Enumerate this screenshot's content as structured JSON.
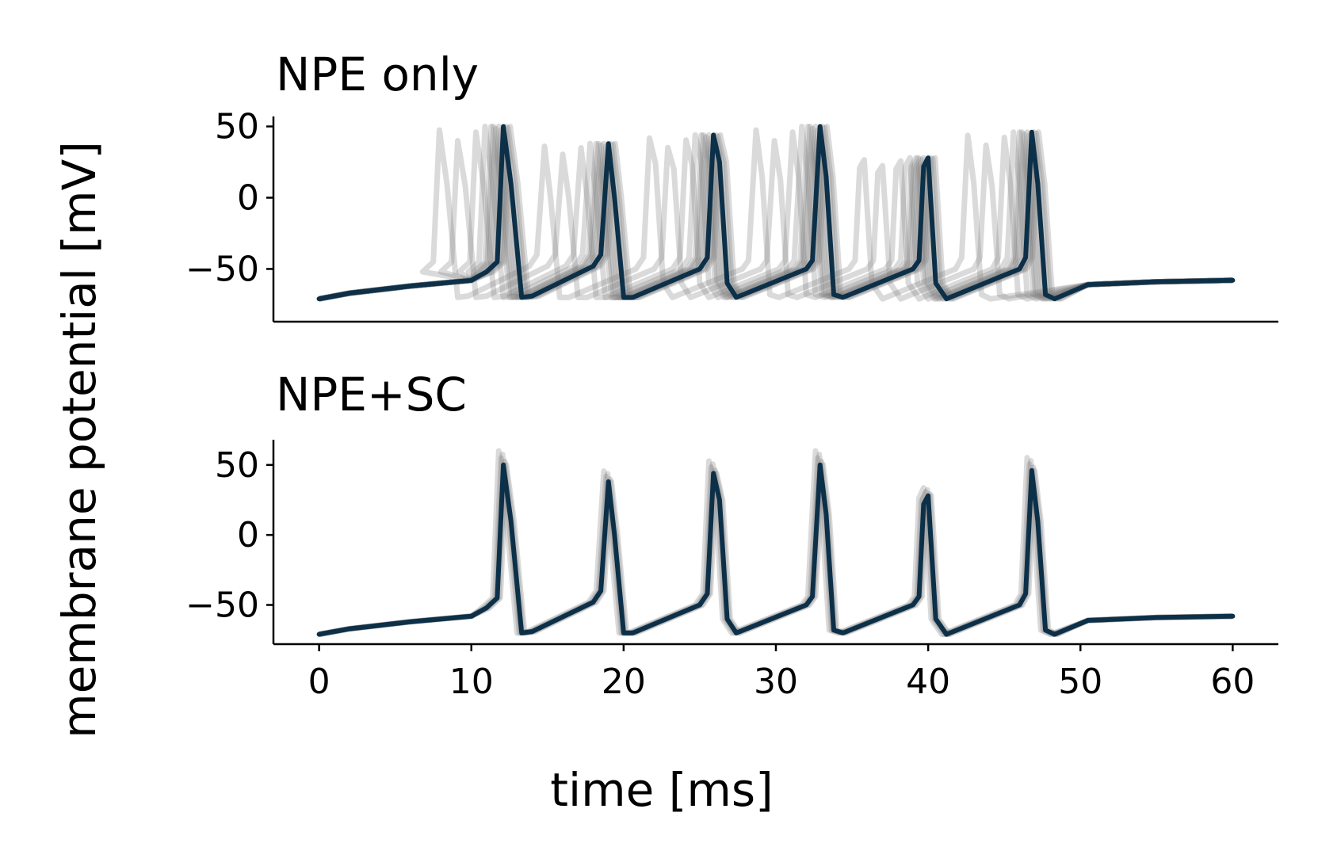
{
  "chart_data": [
    {
      "type": "line",
      "title": "NPE only",
      "xlabel": "time [ms]",
      "ylabel": "membrane potential [mV]",
      "xlim": [
        -3,
        63
      ],
      "ylim": [
        -87,
        57
      ],
      "yticks": [
        50,
        0,
        -50
      ],
      "ytick_labels": [
        "50",
        "0",
        "−50"
      ],
      "show_xticks": false,
      "grid": false,
      "series": [
        {
          "role": "mean",
          "color": "#0d3049",
          "x": [
            0,
            2,
            6,
            10,
            11,
            11.7,
            12.1,
            12.6,
            13.3,
            14,
            18,
            18.5,
            19,
            19.4,
            20,
            20.6,
            25,
            25.5,
            25.9,
            26.3,
            26.8,
            27.4,
            32,
            32.4,
            32.9,
            33.3,
            33.8,
            34.4,
            39,
            39.4,
            39.7,
            40,
            40.5,
            41.2,
            46,
            46.4,
            46.8,
            47.2,
            47.7,
            48.3,
            50.5,
            55,
            60
          ],
          "y": [
            -71,
            -67,
            -62,
            -58,
            -52,
            -45,
            50,
            10,
            -70,
            -69,
            -48,
            -40,
            38,
            0,
            -70,
            -70,
            -50,
            -42,
            44,
            25,
            -60,
            -70,
            -50,
            -44,
            50,
            15,
            -68,
            -70,
            -50,
            -44,
            22,
            28,
            -60,
            -71,
            -50,
            -42,
            46,
            10,
            -68,
            -71,
            -61,
            -59,
            -58
          ]
        }
      ],
      "sample_traces": [
        {
          "shift": -4.2,
          "peak_scale": 0.95
        },
        {
          "shift": -3.0,
          "peak_scale": 0.8
        },
        {
          "shift": -1.8,
          "peak_scale": 0.92
        },
        {
          "shift": -1.2,
          "peak_scale": 1.0
        },
        {
          "shift": -0.8,
          "peak_scale": 1.0
        },
        {
          "shift": -0.5,
          "peak_scale": 0.97
        },
        {
          "shift": -0.3,
          "peak_scale": 1.0
        },
        {
          "shift": -0.15,
          "peak_scale": 0.95
        },
        {
          "shift": 0.15,
          "peak_scale": 1.0
        },
        {
          "shift": 0.3,
          "peak_scale": 0.98
        },
        {
          "shift": 0.45,
          "peak_scale": 1.0
        },
        {
          "shift": -0.65,
          "peak_scale": 1.0
        }
      ]
    },
    {
      "type": "line",
      "title": "NPE+SC",
      "xlabel": "time [ms]",
      "ylabel": "membrane potential [mV]",
      "xlim": [
        -3,
        63
      ],
      "ylim": [
        -78,
        68
      ],
      "yticks": [
        50,
        0,
        -50
      ],
      "ytick_labels": [
        "50",
        "0",
        "−50"
      ],
      "xticks": [
        0,
        10,
        20,
        30,
        40,
        50,
        60
      ],
      "xtick_labels": [
        "0",
        "10",
        "20",
        "30",
        "40",
        "50",
        "60"
      ],
      "show_xticks": true,
      "grid": false,
      "series": [
        {
          "role": "mean",
          "color": "#0d3049",
          "x": [
            0,
            2,
            6,
            10,
            11,
            11.7,
            12.1,
            12.6,
            13.3,
            14,
            18,
            18.5,
            19,
            19.4,
            20,
            20.6,
            25,
            25.5,
            25.9,
            26.3,
            26.8,
            27.4,
            32,
            32.4,
            32.9,
            33.3,
            33.8,
            34.4,
            39,
            39.4,
            39.7,
            40,
            40.5,
            41.2,
            46,
            46.4,
            46.8,
            47.2,
            47.7,
            48.3,
            50.5,
            55,
            60
          ],
          "y": [
            -71,
            -67,
            -62,
            -58,
            -52,
            -45,
            50,
            10,
            -70,
            -69,
            -48,
            -40,
            38,
            0,
            -70,
            -70,
            -50,
            -42,
            44,
            25,
            -60,
            -70,
            -50,
            -44,
            50,
            15,
            -68,
            -70,
            -50,
            -44,
            22,
            28,
            -60,
            -71,
            -50,
            -42,
            46,
            10,
            -68,
            -71,
            -61,
            -59,
            -58
          ]
        }
      ],
      "sample_traces": [
        {
          "shift": -0.3,
          "peak_scale": 1.2
        },
        {
          "shift": -0.15,
          "peak_scale": 1.1
        },
        {
          "shift": 0.1,
          "peak_scale": 1.05
        },
        {
          "shift": 0.2,
          "peak_scale": 1.0
        },
        {
          "shift": -0.05,
          "peak_scale": 1.15
        }
      ]
    }
  ]
}
